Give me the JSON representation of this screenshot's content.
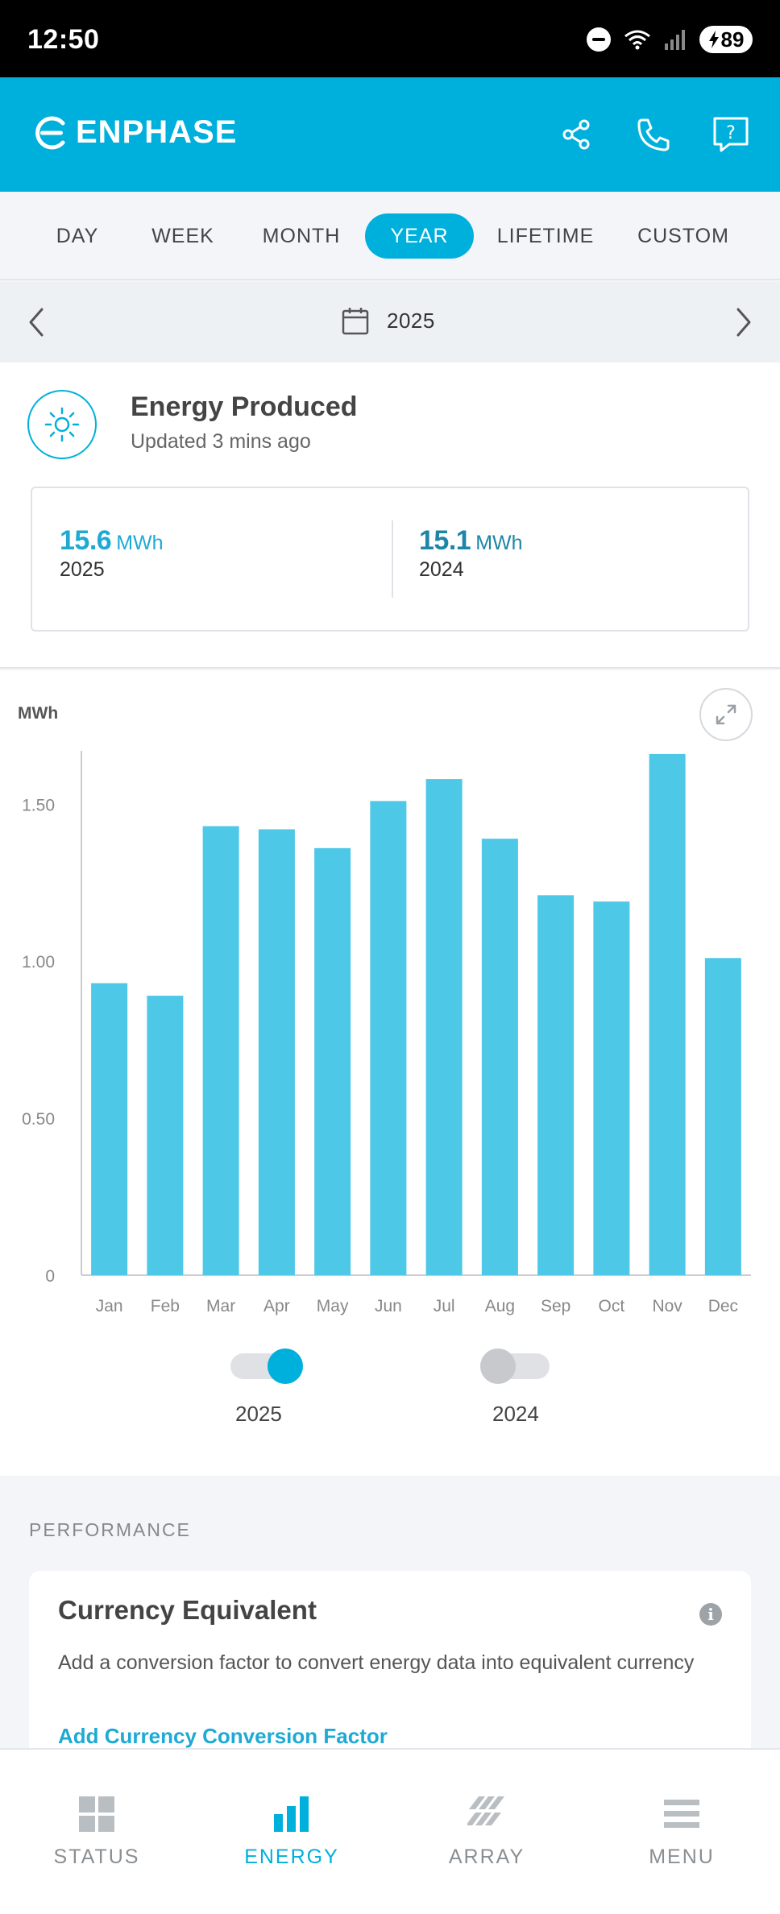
{
  "status_bar": {
    "time": "12:50",
    "battery": "89"
  },
  "header": {
    "brand": "ENPHASE",
    "actions": [
      "share-icon",
      "phone-icon",
      "help-icon"
    ]
  },
  "tabs": [
    {
      "label": "DAY",
      "active": false
    },
    {
      "label": "WEEK",
      "active": false
    },
    {
      "label": "MONTH",
      "active": false
    },
    {
      "label": "YEAR",
      "active": true
    },
    {
      "label": "LIFETIME",
      "active": false
    },
    {
      "label": "CUSTOM",
      "active": false
    }
  ],
  "date_nav": {
    "value": "2025"
  },
  "energy": {
    "title": "Energy Produced",
    "updated": "Updated 3 mins ago",
    "current": {
      "value": "15.6",
      "unit": "MWh",
      "year": "2025"
    },
    "previous": {
      "value": "15.1",
      "unit": "MWh",
      "year": "2024"
    }
  },
  "chart_data": {
    "type": "bar",
    "ylabel": "MWh",
    "categories": [
      "Jan",
      "Feb",
      "Mar",
      "Apr",
      "May",
      "Jun",
      "Jul",
      "Aug",
      "Sep",
      "Oct",
      "Nov",
      "Dec"
    ],
    "series": [
      {
        "name": "2025",
        "values": [
          0.93,
          0.89,
          1.43,
          1.42,
          1.36,
          1.51,
          1.58,
          1.39,
          1.21,
          1.19,
          1.66,
          1.01
        ],
        "color": "#4ec8e7"
      }
    ],
    "yticks": [
      "0",
      "0.50",
      "1.00",
      "1.50"
    ],
    "ytick_values": [
      0,
      0.5,
      1.0,
      1.5
    ],
    "ylim": [
      0,
      1.67
    ],
    "grid": false
  },
  "legend": {
    "toggles": [
      {
        "label": "2025",
        "on": true
      },
      {
        "label": "2024",
        "on": false
      }
    ]
  },
  "performance": {
    "section_label": "PERFORMANCE",
    "card_title": "Currency Equivalent",
    "description": "Add a conversion factor to convert energy data into equivalent currency",
    "link": "Add Currency Conversion Factor"
  },
  "bottom_nav": [
    {
      "label": "STATUS",
      "icon": "status-icon",
      "active": false
    },
    {
      "label": "ENERGY",
      "icon": "energy-icon",
      "active": true
    },
    {
      "label": "ARRAY",
      "icon": "array-icon",
      "active": false
    },
    {
      "label": "MENU",
      "icon": "menu-icon",
      "active": false
    }
  ],
  "colors": {
    "accent": "#00b0dc",
    "bar": "#4ec8e7",
    "value_2025": "#1eaad4",
    "value_2024": "#1d86a8"
  }
}
